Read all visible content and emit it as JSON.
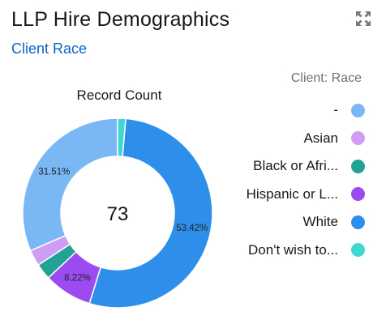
{
  "header": {
    "title": "LLP Hire Demographics",
    "subtitle": "Client Race",
    "expand_icon": "expand-icon"
  },
  "chart_data": {
    "type": "pie",
    "style": "donut",
    "title": "Record Count",
    "center_value": "73",
    "legend_title": "Client: Race",
    "legend_position": "right",
    "series": [
      {
        "name": "-",
        "value": 31.51,
        "label": "31.51%",
        "color": "#7ab8f5"
      },
      {
        "name": "Asian",
        "value": 2.74,
        "label": "",
        "color": "#cf9cf6"
      },
      {
        "name": "Black or Afri...",
        "value": 2.74,
        "label": "",
        "color": "#22a293"
      },
      {
        "name": "Hispanic or L...",
        "value": 8.22,
        "label": "8.22%",
        "color": "#9b4cf0"
      },
      {
        "name": "White",
        "value": 53.42,
        "label": "53.42%",
        "color": "#2d8fea"
      },
      {
        "name": "Don't wish to...",
        "value": 1.37,
        "label": "",
        "color": "#3ed8d0"
      }
    ]
  }
}
